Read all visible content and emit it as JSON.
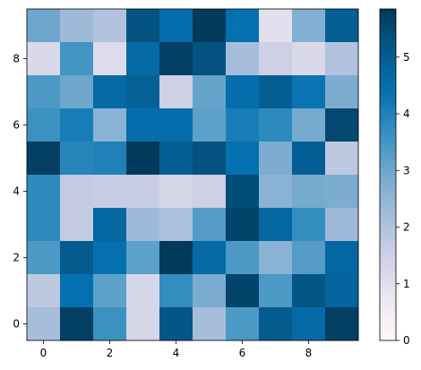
{
  "chart_data": {
    "type": "heatmap",
    "title": "",
    "xlabel": "",
    "ylabel": "",
    "colormap": "PuBu",
    "vmin": 0,
    "vmax": 5.85,
    "x_ticks": [
      "0",
      "2",
      "4",
      "6",
      "8"
    ],
    "y_ticks": [
      "0",
      "2",
      "4",
      "6",
      "8"
    ],
    "colorbar_ticks": [
      "0",
      "1",
      "2",
      "3",
      "4",
      "5"
    ],
    "grid": false,
    "rows_top_to_bottom": [
      [
        3.0,
        2.3,
        2.0,
        5.3,
        4.5,
        5.8,
        4.4,
        1.0,
        2.7,
        5.0
      ],
      [
        1.2,
        3.5,
        1.1,
        4.6,
        5.7,
        5.3,
        2.2,
        1.5,
        1.2,
        2.0
      ],
      [
        3.4,
        3.0,
        4.6,
        4.9,
        1.5,
        3.1,
        4.5,
        5.0,
        4.3,
        2.8
      ],
      [
        3.6,
        4.1,
        2.6,
        4.5,
        4.5,
        3.2,
        4.1,
        3.8,
        2.9,
        5.5
      ],
      [
        5.7,
        3.9,
        4.0,
        5.8,
        5.0,
        5.3,
        4.4,
        2.8,
        5.0,
        1.8
      ],
      [
        3.8,
        1.7,
        1.6,
        1.6,
        1.3,
        1.5,
        5.4,
        2.6,
        2.9,
        2.8
      ],
      [
        3.8,
        1.7,
        4.7,
        2.3,
        2.1,
        3.3,
        5.6,
        4.7,
        3.7,
        2.3
      ],
      [
        3.4,
        5.1,
        4.4,
        3.2,
        5.8,
        4.6,
        3.4,
        2.6,
        3.3,
        4.7
      ],
      [
        1.8,
        4.4,
        3.2,
        1.3,
        3.7,
        2.8,
        5.6,
        3.4,
        5.2,
        4.8
      ],
      [
        2.2,
        5.7,
        3.6,
        1.3,
        5.2,
        2.2,
        3.4,
        5.1,
        4.6,
        5.7
      ]
    ]
  }
}
